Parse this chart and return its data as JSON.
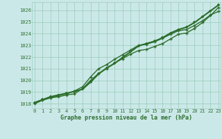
{
  "title": "Graphe pression niveau de la mer (hPa)",
  "background_color": "#cbe8e8",
  "plot_bg_color": "#cbe8e8",
  "grid_color": "#9ecfbf",
  "line_color": "#2d6e2d",
  "x_ticks": [
    0,
    1,
    2,
    3,
    4,
    5,
    6,
    7,
    8,
    9,
    10,
    11,
    12,
    13,
    14,
    15,
    16,
    17,
    18,
    19,
    20,
    21,
    22,
    23
  ],
  "y_ticks": [
    1018,
    1019,
    1020,
    1021,
    1022,
    1023,
    1024,
    1025,
    1026
  ],
  "ylim": [
    1017.6,
    1026.7
  ],
  "xlim": [
    -0.3,
    23.3
  ],
  "series1": [
    1018.0,
    1018.3,
    1018.5,
    1018.6,
    1018.75,
    1018.85,
    1019.3,
    1020.0,
    1020.6,
    1021.0,
    1021.5,
    1021.85,
    1022.25,
    1022.55,
    1022.65,
    1022.9,
    1023.15,
    1023.55,
    1023.95,
    1024.05,
    1024.45,
    1024.95,
    1025.55,
    1026.25
  ],
  "series2": [
    1018.05,
    1018.35,
    1018.55,
    1018.7,
    1018.85,
    1019.1,
    1019.45,
    1020.3,
    1021.0,
    1021.35,
    1021.8,
    1022.2,
    1022.6,
    1023.0,
    1023.1,
    1023.3,
    1023.6,
    1023.95,
    1024.25,
    1024.35,
    1024.7,
    1025.1,
    1025.6,
    1025.9
  ],
  "series3": [
    1018.1,
    1018.35,
    1018.6,
    1018.75,
    1018.9,
    1019.05,
    1019.25,
    1019.85,
    1020.55,
    1021.05,
    1021.45,
    1021.95,
    1022.45,
    1022.95,
    1023.15,
    1023.35,
    1023.65,
    1024.05,
    1024.35,
    1024.55,
    1024.95,
    1025.45,
    1025.95,
    1026.45
  ]
}
